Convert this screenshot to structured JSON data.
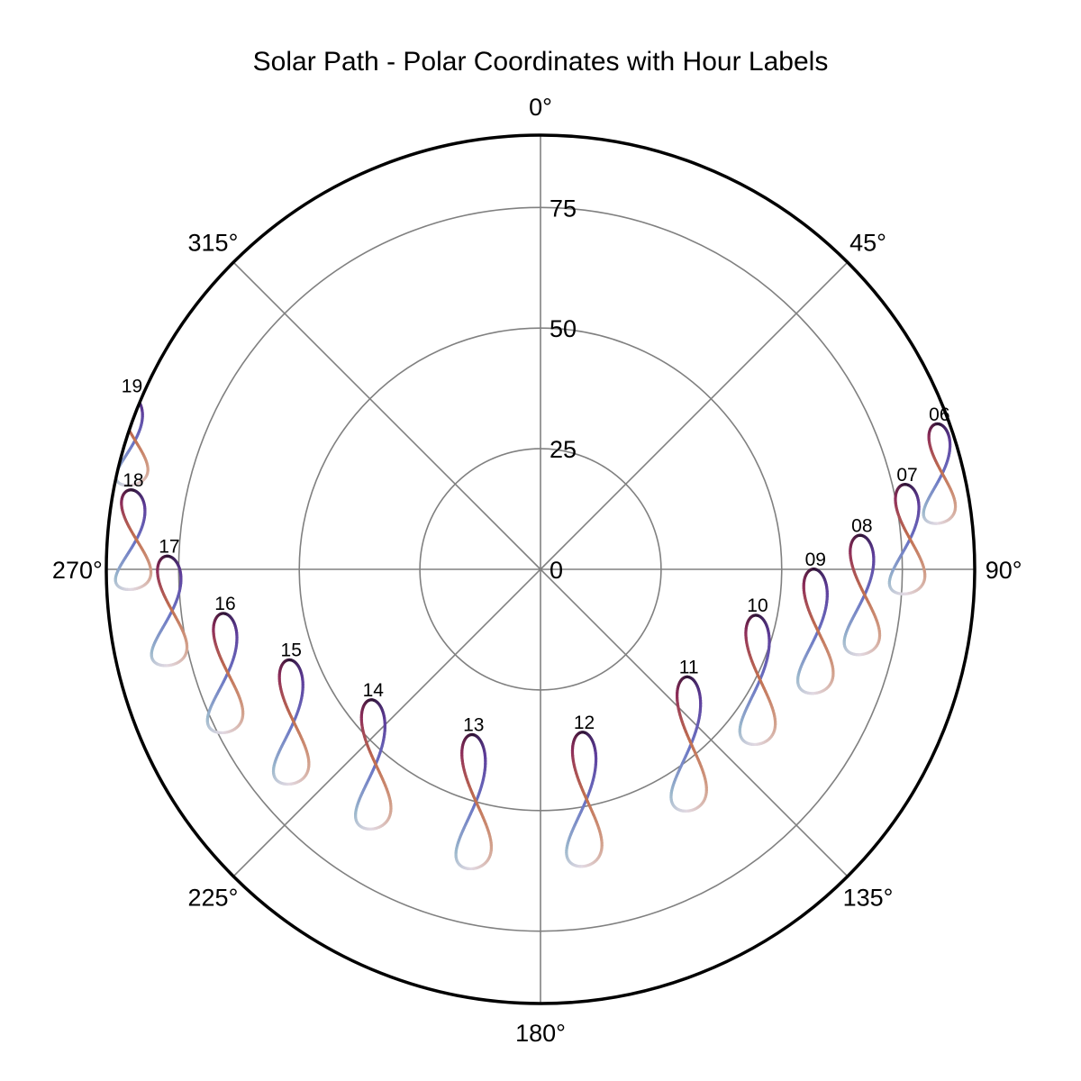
{
  "chart_data": {
    "type": "polar-line",
    "title": "Solar Path - Polar Coordinates with Hour Labels",
    "theta_direction": "clockwise",
    "theta_zero": "top",
    "r_max": 90,
    "r_ticks": [
      0,
      25,
      50,
      75
    ],
    "r_tick_labels": [
      "0",
      "25",
      "50",
      "75"
    ],
    "theta_ticks": [
      0,
      45,
      90,
      135,
      180,
      225,
      270,
      315
    ],
    "theta_tick_labels": [
      "0°",
      "45°",
      "90°",
      "135°",
      "180°",
      "225°",
      "270°",
      "315°"
    ],
    "grid": true,
    "colormap": "twilight",
    "colors": [
      "#2f1436",
      "#5e3c99",
      "#6a74c4",
      "#9ab7cc",
      "#e2d9e2",
      "#d3a38f",
      "#c16f50",
      "#8e2d5a"
    ],
    "analemmas": [
      {
        "hour": "06",
        "azimuth": 70,
        "r": 88,
        "dx": 9,
        "dr": 20
      },
      {
        "hour": "07",
        "azimuth": 77,
        "r": 78,
        "dx": 10,
        "dr": 22
      },
      {
        "hour": "08",
        "azimuth": 84,
        "r": 67,
        "dx": 10,
        "dr": 24
      },
      {
        "hour": "09",
        "azimuth": 90,
        "r": 57,
        "dx": 10,
        "dr": 25
      },
      {
        "hour": "10",
        "azimuth": 102,
        "r": 46,
        "dx": 10,
        "dr": 26
      },
      {
        "hour": "11",
        "azimuth": 126,
        "r": 38,
        "dx": 10,
        "dr": 27
      },
      {
        "hour": "12",
        "azimuth": 165,
        "r": 35,
        "dx": 10,
        "dr": 27
      },
      {
        "hour": "13",
        "azimuth": 202,
        "r": 37,
        "dx": 10,
        "dr": 27
      },
      {
        "hour": "14",
        "azimuth": 232,
        "r": 44,
        "dx": 10,
        "dr": 26
      },
      {
        "hour": "15",
        "azimuth": 250,
        "r": 55,
        "dx": 10,
        "dr": 25
      },
      {
        "hour": "16",
        "azimuth": 262,
        "r": 66,
        "dx": 10,
        "dr": 24
      },
      {
        "hour": "17",
        "azimuth": 272,
        "r": 77,
        "dx": 10,
        "dr": 22
      },
      {
        "hour": "18",
        "azimuth": 281,
        "r": 86,
        "dx": 10,
        "dr": 20
      },
      {
        "hour": "19",
        "azimuth": 293,
        "r": 92,
        "dx": 9,
        "dr": 18
      }
    ]
  }
}
